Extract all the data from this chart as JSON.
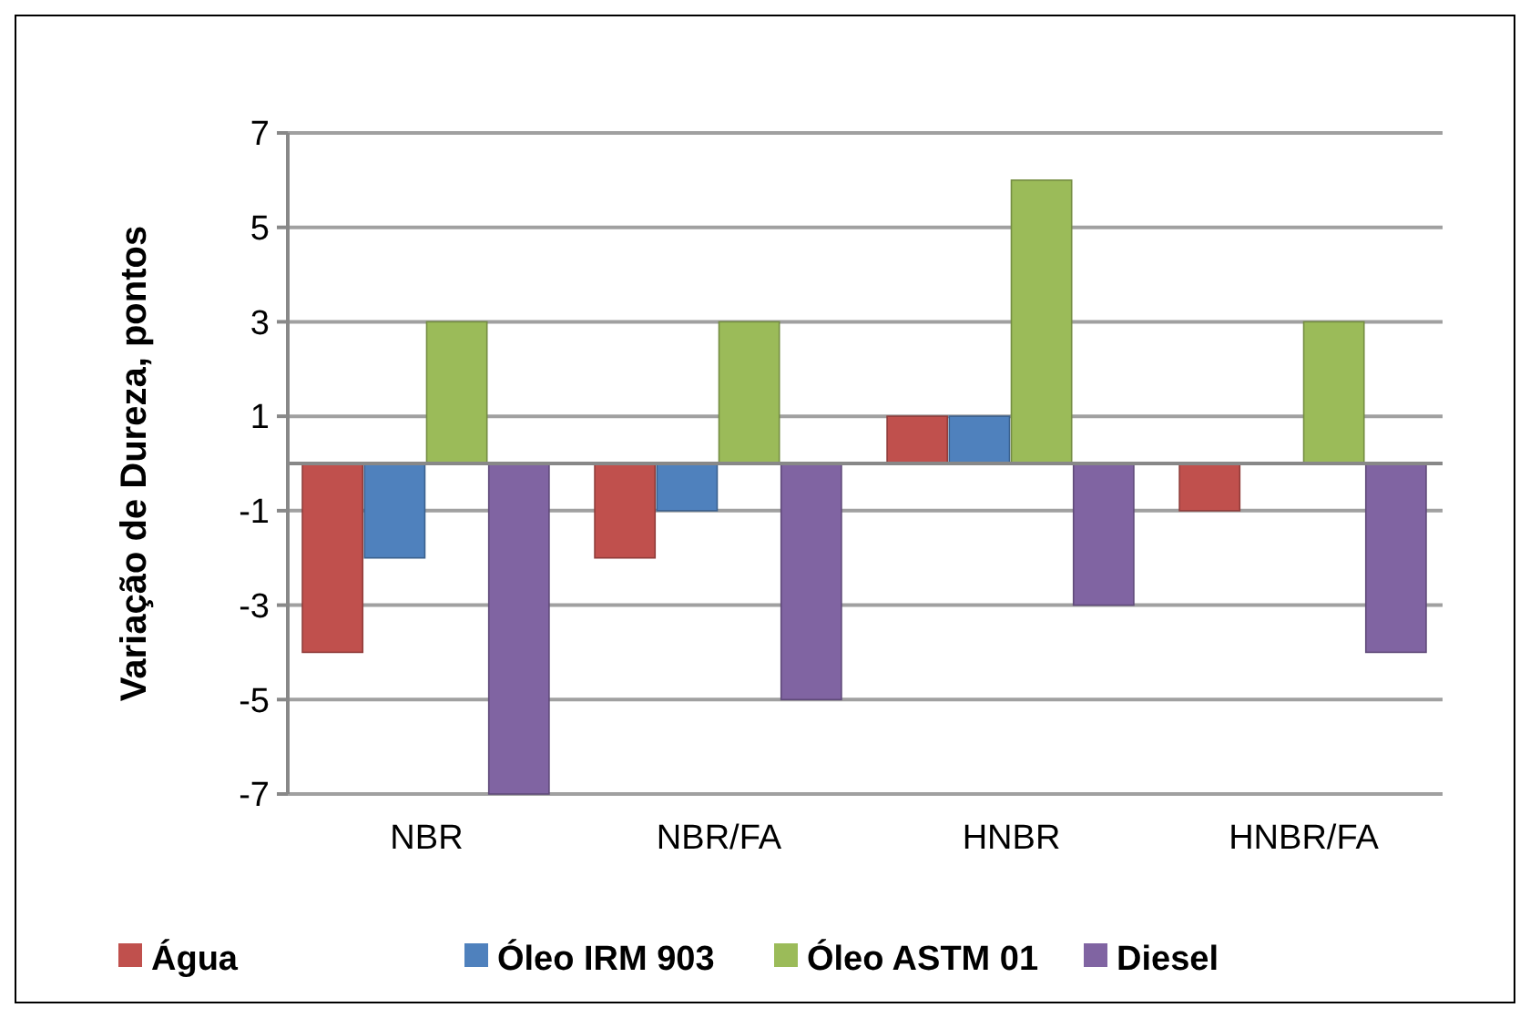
{
  "chart_data": {
    "type": "bar",
    "ylabel": "Variação de Dureza, pontos",
    "categories": [
      "NBR",
      "NBR/FA",
      "HNBR",
      "HNBR/FA"
    ],
    "series": [
      {
        "name": "Água",
        "color": "#c0504d",
        "values": [
          -4,
          -2,
          1,
          -1
        ]
      },
      {
        "name": "Óleo IRM 903",
        "color": "#4f81bd",
        "values": [
          -2,
          -1,
          1,
          0
        ]
      },
      {
        "name": "Óleo ASTM 01",
        "color": "#9bbb59",
        "values": [
          3,
          3,
          6,
          3
        ]
      },
      {
        "name": "Diesel",
        "color": "#8064a2",
        "values": [
          -7,
          -5,
          -3,
          -4
        ]
      }
    ],
    "ylim": [
      -7,
      7
    ],
    "yticks": [
      -7,
      -5,
      -3,
      -1,
      1,
      3,
      5,
      7
    ],
    "grid": "y",
    "legend": "bottom"
  }
}
